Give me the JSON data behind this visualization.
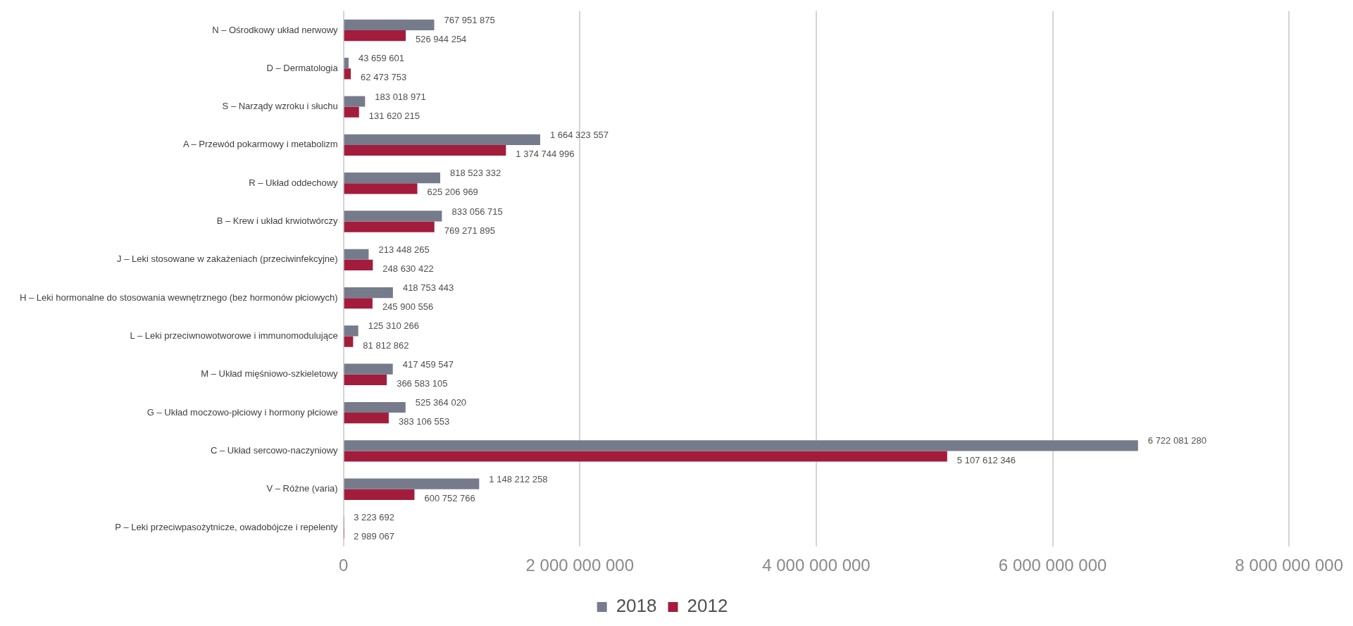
{
  "chart_data": {
    "type": "bar",
    "orientation": "horizontal",
    "categories": [
      "N – Ośrodkowy układ nerwowy",
      "D – Dermatologia",
      "S – Narządy wzroku i słuchu",
      "A – Przewód pokarmowy i metabolizm",
      "R – Układ oddechowy",
      "B – Krew i układ krwiotwórczy",
      "J – Leki stosowane w zakażeniach (przeciwinfekcyjne)",
      "H – Leki hormonalne do stosowania wewnętrznego (bez hormonów płciowych)",
      "L – Leki przeciwnowotworowe i immunomodulujące",
      "M – Układ mięśniowo-szkieletowy",
      "G – Układ moczowo-płciowy i hormony płciowe",
      "C – Układ sercowo-naczyniowy",
      "V – Różne (varia)",
      "P – Leki przeciwpasożytnicze, owadobójcze i repelenty"
    ],
    "series": [
      {
        "name": "2018",
        "color": "#767b8c",
        "values": [
          767951875,
          43659601,
          183018971,
          1664323557,
          818523332,
          833056715,
          213448265,
          418753443,
          125310266,
          417459547,
          525364020,
          6722081280,
          1148212258,
          3223692
        ],
        "value_labels": [
          "767 951 875",
          "43 659 601",
          "183 018 971",
          "1 664 323 557",
          "818 523 332",
          "833 056 715",
          "213 448 265",
          "418 753 443",
          "125 310 266",
          "417 459 547",
          "525 364 020",
          "6 722 081 280",
          "1 148 212 258",
          "3 223 692"
        ]
      },
      {
        "name": "2012",
        "color": "#a31c3c",
        "values": [
          526944254,
          62473753,
          131620215,
          1374744996,
          625206969,
          769271895,
          248630422,
          245900556,
          81812862,
          366583105,
          383106553,
          5107612346,
          600752766,
          2989067
        ],
        "value_labels": [
          "526 944 254",
          "62 473 753",
          "131 620 215",
          "1 374 744 996",
          "625 206 969",
          "769 271 895",
          "248 630 422",
          "245 900 556",
          "81 812 862",
          "366 583 105",
          "383 106 553",
          "5 107 612 346",
          "600 752 766",
          "2 989 067"
        ]
      }
    ],
    "xlim": [
      0,
      8000000000
    ],
    "xticks": [
      {
        "value": 0,
        "label": "0"
      },
      {
        "value": 2000000000,
        "label": "2 000 000 000"
      },
      {
        "value": 4000000000,
        "label": "4 000 000 000"
      },
      {
        "value": 6000000000,
        "label": "6 000 000 000"
      },
      {
        "value": 8000000000,
        "label": "8 000 000 000"
      }
    ],
    "grid": "x",
    "legend": "bottom"
  }
}
